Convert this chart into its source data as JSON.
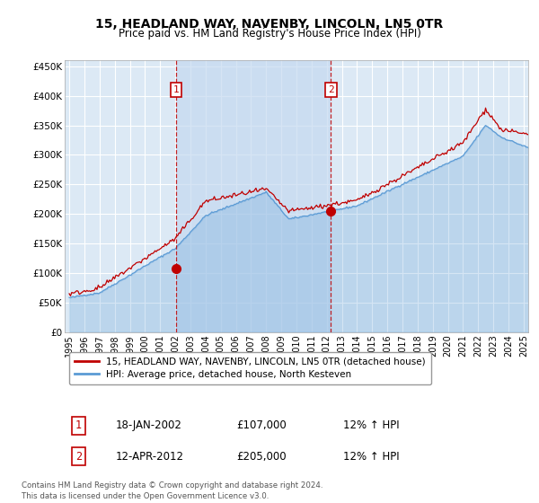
{
  "title": "15, HEADLAND WAY, NAVENBY, LINCOLN, LN5 0TR",
  "subtitle": "Price paid vs. HM Land Registry's House Price Index (HPI)",
  "hpi_color": "#5b9bd5",
  "price_color": "#c00000",
  "background_color": "#ffffff",
  "plot_bg_color": "#dce9f5",
  "grid_color": "#ffffff",
  "shade_between_color": "#c5d9f0",
  "ylim": [
    0,
    460000
  ],
  "yticks": [
    0,
    50000,
    100000,
    150000,
    200000,
    250000,
    300000,
    350000,
    400000,
    450000
  ],
  "ytick_labels": [
    "£0",
    "£50K",
    "£100K",
    "£150K",
    "£200K",
    "£250K",
    "£300K",
    "£350K",
    "£400K",
    "£450K"
  ],
  "xlim_start": 1994.7,
  "xlim_end": 2025.3,
  "vline1_x": 2002.05,
  "vline2_x": 2012.28,
  "ann1_x": 2002.05,
  "ann1_y": 107000,
  "ann2_x": 2012.28,
  "ann2_y": 205000,
  "legend_line1": "15, HEADLAND WAY, NAVENBY, LINCOLN, LN5 0TR (detached house)",
  "legend_line2": "HPI: Average price, detached house, North Kesteven",
  "footer": "Contains HM Land Registry data © Crown copyright and database right 2024.\nThis data is licensed under the Open Government Licence v3.0.",
  "table_row1": [
    "1",
    "18-JAN-2002",
    "£107,000",
    "12% ↑ HPI"
  ],
  "table_row2": [
    "2",
    "12-APR-2012",
    "£205,000",
    "12% ↑ HPI"
  ]
}
